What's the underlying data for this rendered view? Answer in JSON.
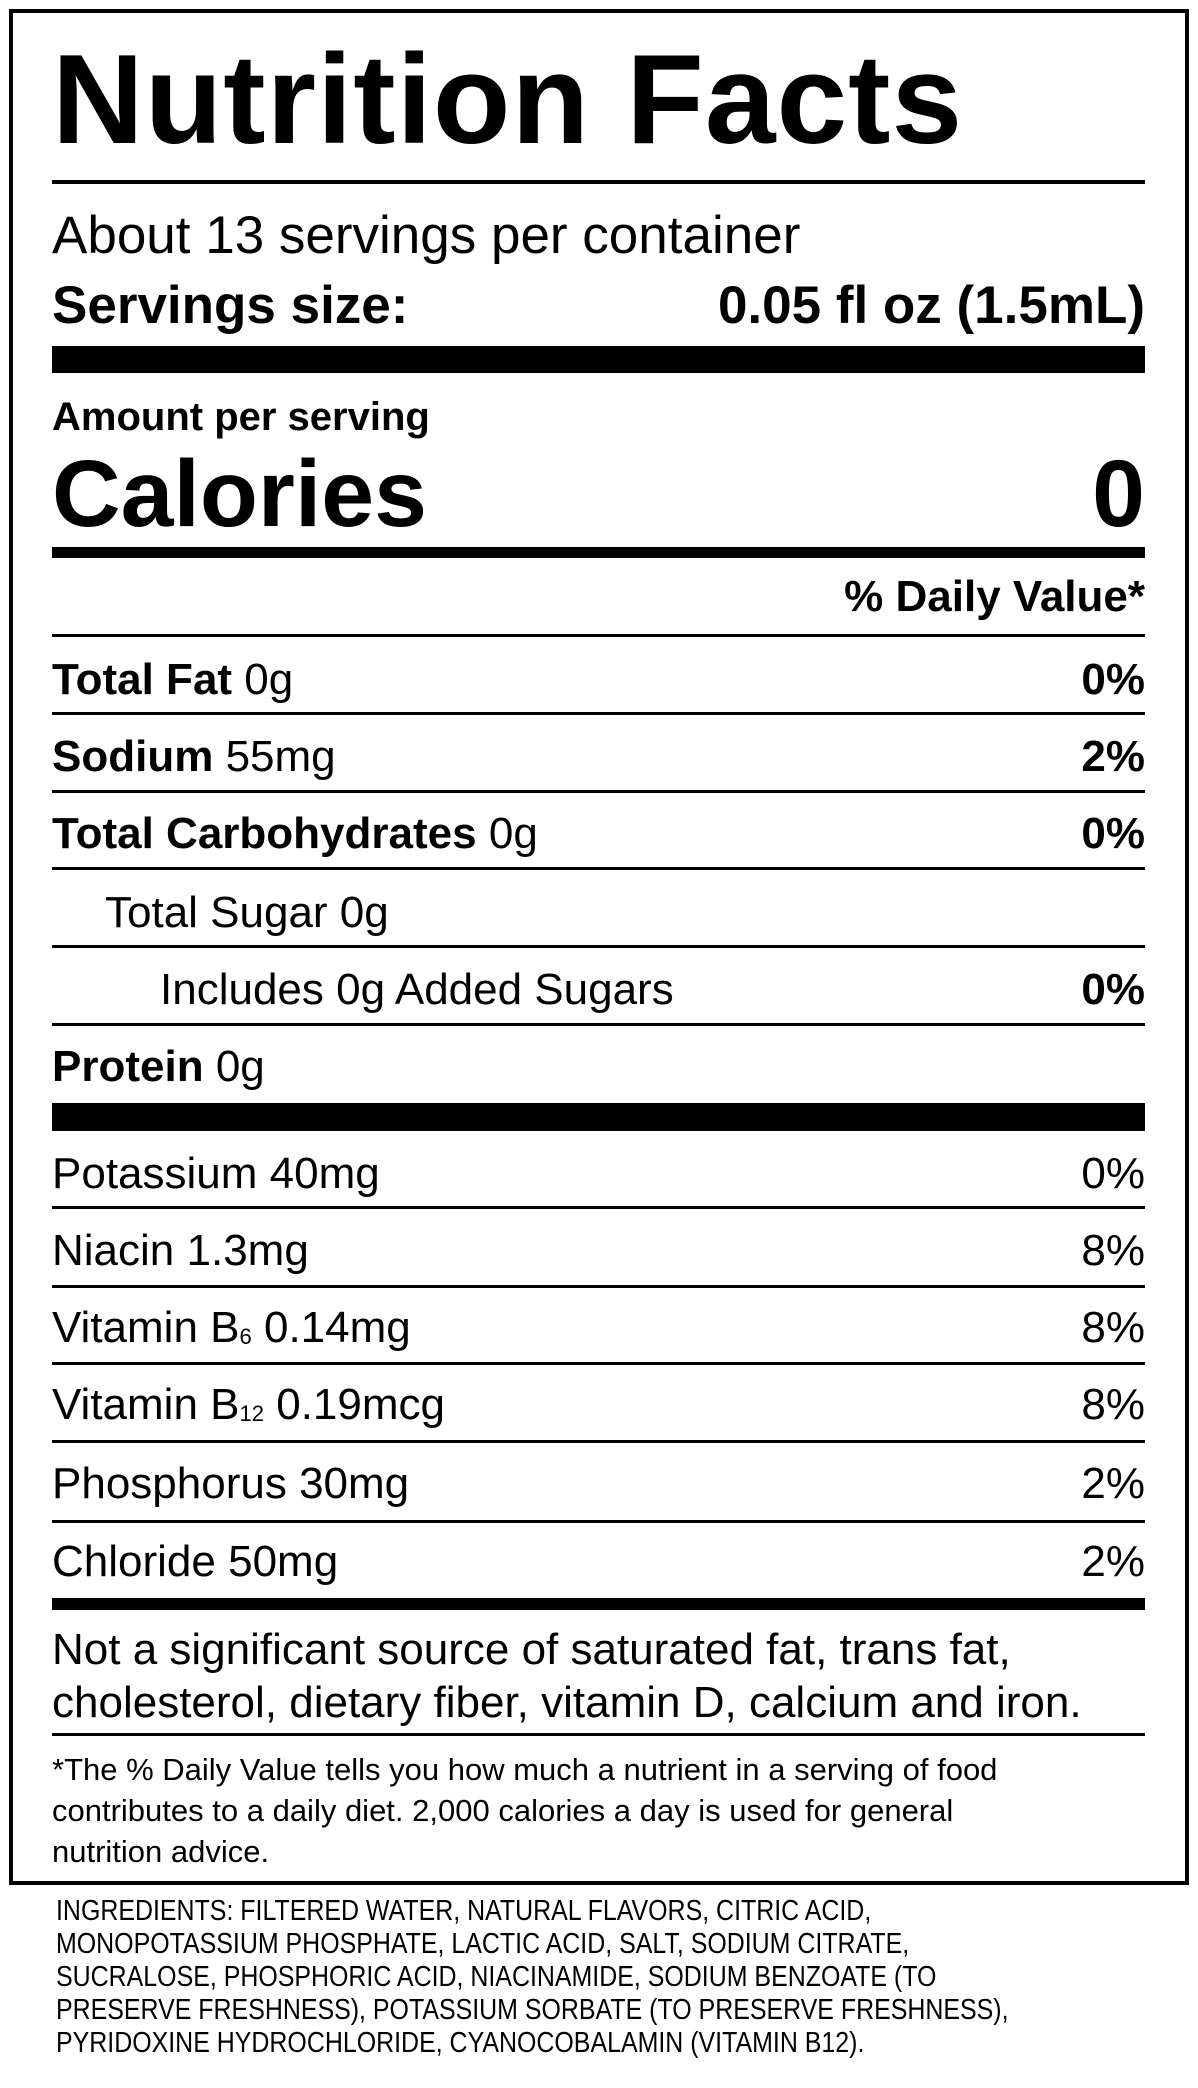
{
  "title": "Nutrition Facts",
  "servings_per_container": "About 13 servings per container",
  "serving_size": {
    "label": "Servings size:",
    "value": "0.05 fl oz (1.5mL)"
  },
  "amount_per_serving": "Amount per serving",
  "calories": {
    "label": "Calories",
    "value": "0"
  },
  "daily_value_header": "% Daily Value*",
  "nutrients": [
    {
      "name": "Total Fat",
      "amount": "0g",
      "dv": "0%"
    },
    {
      "name": "Sodium",
      "amount": "55mg",
      "dv": "2%"
    },
    {
      "name": "Total Carbohydrates",
      "amount": "0g",
      "dv": "0%"
    },
    {
      "name": "Total Sugar 0g",
      "amount": "",
      "dv": ""
    },
    {
      "name": "Includes 0g Added Sugars",
      "amount": "",
      "dv": "0%"
    },
    {
      "name": "Protein",
      "amount": "0g",
      "dv": ""
    }
  ],
  "vitamins": [
    {
      "name": "Potassium",
      "sub": "",
      "amount": "40mg",
      "dv": "0%"
    },
    {
      "name": "Niacin",
      "sub": "",
      "amount": "1.3mg",
      "dv": "8%"
    },
    {
      "name": "Vitamin B",
      "sub": "6",
      "amount": "0.14mg",
      "dv": "8%"
    },
    {
      "name": "Vitamin B",
      "sub": "12",
      "amount": "0.19mcg",
      "dv": "8%"
    },
    {
      "name": "Phosphorus",
      "sub": "",
      "amount": "30mg",
      "dv": "2%"
    },
    {
      "name": "Chloride",
      "sub": "",
      "amount": "50mg",
      "dv": "2%"
    }
  ],
  "not_significant": [
    "Not a significant source of saturated fat, trans fat,",
    "cholesterol, dietary fiber, vitamin D, calcium and iron."
  ],
  "footnote": [
    "*The % Daily Value tells you how much a nutrient in a serving of food",
    "contributes to a daily diet. 2,000 calories a day is used for general",
    "nutrition advice."
  ],
  "ingredients": [
    "INGREDIENTS: FILTERED WATER, NATURAL FLAVORS, CITRIC ACID,",
    "MONOPOTASSIUM PHOSPHATE, LACTIC ACID, SALT, SODIUM CITRATE,",
    "SUCRALOSE, PHOSPHORIC ACID, NIACINAMIDE, SODIUM BENZOATE (TO",
    "PRESERVE FRESHNESS), POTASSIUM SORBATE (TO PRESERVE FRESHNESS),",
    "PYRIDOXINE HYDROCHLORIDE, CYANOCOBALAMIN (VITAMIN B12)."
  ]
}
